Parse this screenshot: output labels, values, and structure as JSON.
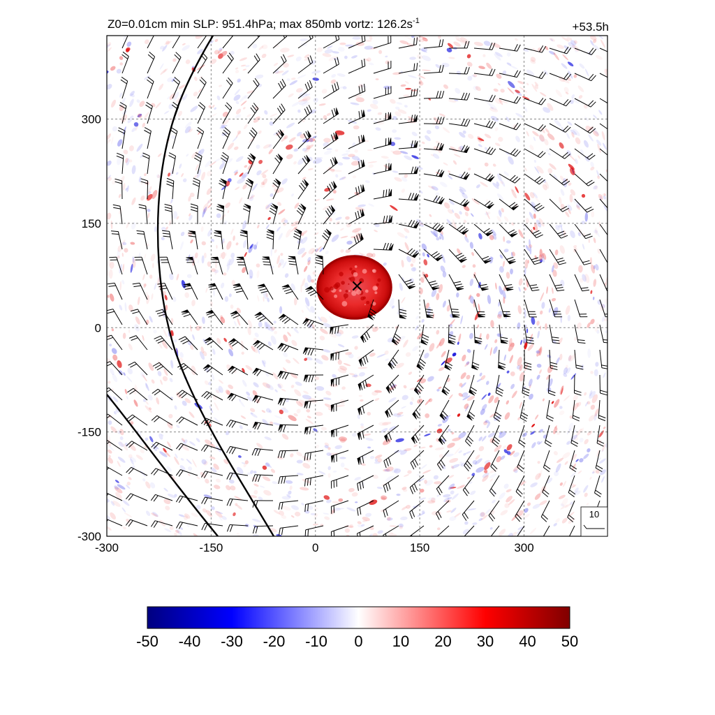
{
  "chart_data": {
    "type": "heatmap",
    "title": "Z0=0.01cm  min SLP: 951.4hPa; max 850mb vortz: 126.2s",
    "title_superscript": "-1",
    "time_label": "+53.5h",
    "x_ticks": [
      -300,
      -150,
      0,
      150,
      300
    ],
    "y_ticks": [
      300,
      150,
      0,
      -150,
      -300
    ],
    "xlim": [
      -300,
      420
    ],
    "ylim": [
      -300,
      420
    ],
    "grid": true,
    "storm_center": {
      "x": 60,
      "y": 60
    },
    "eyewall_radius": 45,
    "colorbar": {
      "ticks": [
        -50,
        -40,
        -30,
        -20,
        -10,
        0,
        10,
        20,
        30,
        40,
        50
      ],
      "range": [
        -50,
        50
      ],
      "colors": [
        "#000080",
        "#0000ff",
        "#ffffff",
        "#ff0000",
        "#800000"
      ]
    },
    "wind_key": {
      "label": "10"
    },
    "colors": {
      "positive": "#ff0000",
      "negative": "#0000ff",
      "frame": "#000000"
    }
  }
}
